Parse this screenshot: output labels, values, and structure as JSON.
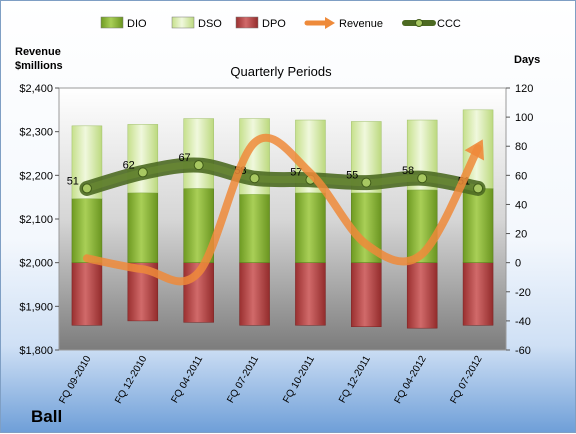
{
  "company": "Ball",
  "chart_data": {
    "type": "bar",
    "title": "Quarterly Periods",
    "ylabel_left": "Revenue $millions",
    "ylabel_right": "Days",
    "categories": [
      "FQ 09-2010",
      "FQ 12-2010",
      "FQ 04-2011",
      "FQ 07-2011",
      "FQ 10-2011",
      "FQ 12-2011",
      "FQ 04-2012",
      "FQ 07-2012"
    ],
    "ylim_left": [
      1800,
      2400
    ],
    "yticks_left": [
      "$1,800",
      "$1,900",
      "$2,000",
      "$2,100",
      "$2,200",
      "$2,300",
      "$2,400"
    ],
    "ylim_right": [
      -60,
      120
    ],
    "yticks_right": [
      "-60",
      "-40",
      "-20",
      "0",
      "20",
      "40",
      "60",
      "80",
      "100",
      "120"
    ],
    "legend": [
      "DIO",
      "DSO",
      "DPO",
      "Revenue",
      "CCC"
    ],
    "legend_position": "top",
    "series": [
      {
        "name": "DIO",
        "kind": "bar",
        "color": "#8db33d",
        "values": [
          44,
          48,
          51,
          47,
          48,
          48,
          50,
          51
        ]
      },
      {
        "name": "DSO",
        "kind": "bar",
        "color": "#d9ecb0",
        "values": [
          50,
          47,
          48,
          52,
          50,
          49,
          48,
          54
        ]
      },
      {
        "name": "DPO",
        "kind": "bar",
        "color": "#b84a4a",
        "values": [
          -43,
          -40,
          -41,
          -43,
          -43,
          -44,
          -45,
          -43
        ]
      },
      {
        "name": "Revenue",
        "kind": "line",
        "axis": "left",
        "color": "#ee8a3a",
        "values": [
          2010,
          1985,
          1978,
          2275,
          2205,
          2042,
          2020,
          2262
        ]
      },
      {
        "name": "CCC",
        "kind": "line",
        "axis": "right",
        "color": "#5d7a2a",
        "values": [
          51,
          62,
          67,
          58,
          57,
          55,
          58,
          51
        ],
        "labels": [
          "51",
          "62",
          "67",
          "58",
          "57",
          "55",
          "58",
          "51"
        ]
      }
    ]
  }
}
